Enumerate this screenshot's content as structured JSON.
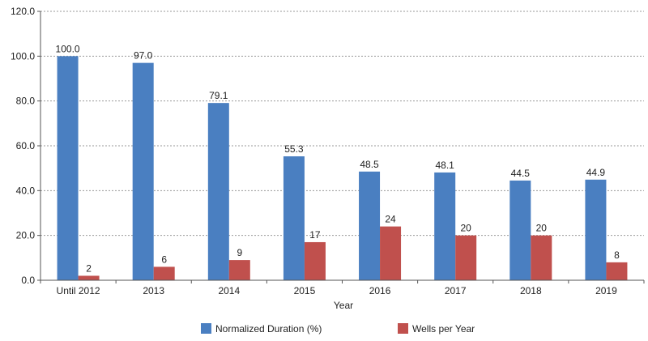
{
  "chart_data": {
    "type": "bar",
    "title": "",
    "xlabel": "Year",
    "ylabel": "",
    "ylim": [
      0,
      120
    ],
    "yticks": [
      "0.0",
      "20.0",
      "40.0",
      "60.0",
      "80.0",
      "100.0",
      "120.0"
    ],
    "grid": true,
    "legend_position": "bottom",
    "categories": [
      "Until 2012",
      "2013",
      "2014",
      "2015",
      "2016",
      "2017",
      "2018",
      "2019"
    ],
    "series": [
      {
        "name": "Normalized Duration (%)",
        "color": "#4a7fc1",
        "values": [
          100.0,
          97.0,
          79.1,
          55.3,
          48.5,
          48.1,
          44.5,
          44.9
        ],
        "labels": [
          "100.0",
          "97.0",
          "79.1",
          "55.3",
          "48.5",
          "48.1",
          "44.5",
          "44.9"
        ]
      },
      {
        "name": "Wells per Year",
        "color": "#c0504d",
        "values": [
          2,
          6,
          9,
          17,
          24,
          20,
          20,
          8
        ],
        "labels": [
          "2",
          "6",
          "9",
          "17",
          "24",
          "20",
          "20",
          "8"
        ]
      }
    ]
  }
}
